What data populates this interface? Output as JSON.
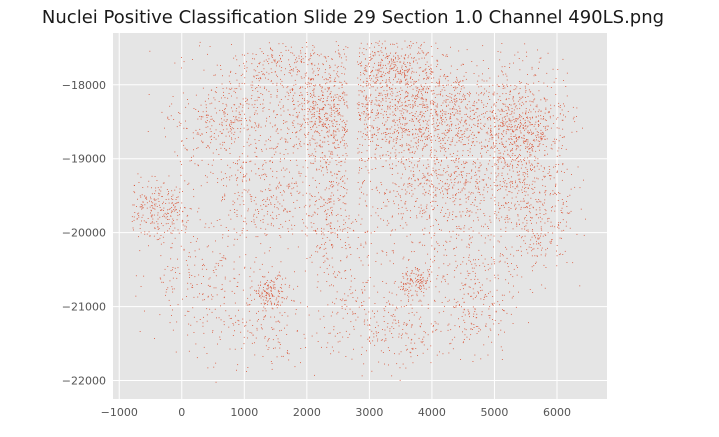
{
  "chart_data": {
    "type": "scatter",
    "title": "Nuclei Positive Classification Slide  29 Section 1.0 Channel 490LS.png",
    "xlabel": "",
    "ylabel": "",
    "xlim": [
      -1100,
      6800
    ],
    "ylim": [
      -22250,
      -17300
    ],
    "xticks": [
      -1000,
      0,
      1000,
      2000,
      3000,
      4000,
      5000,
      6000
    ],
    "yticks": [
      -18000,
      -19000,
      -20000,
      -21000,
      -22000
    ],
    "xtick_labels": [
      "−1000",
      "0",
      "1000",
      "2000",
      "3000",
      "4000",
      "5000",
      "6000"
    ],
    "ytick_labels": [
      "−18000",
      "−19000",
      "−20000",
      "−21000",
      "−22000"
    ],
    "grid": true,
    "background_color": "#e5e5e5",
    "marker_color": "#d9573a",
    "series": [
      {
        "name": "",
        "clusters": [
          {
            "cx": 3800,
            "cy": -18450,
            "sx": 900,
            "sy": 350,
            "n": 1300
          },
          {
            "cx": 5400,
            "cy": -18700,
            "sx": 350,
            "sy": 450,
            "n": 650
          },
          {
            "cx": 3300,
            "cy": -17800,
            "sx": 500,
            "sy": 250,
            "n": 450
          },
          {
            "cx": 1600,
            "cy": -17800,
            "sx": 450,
            "sy": 300,
            "n": 280
          },
          {
            "cx": 700,
            "cy": -18500,
            "sx": 450,
            "sy": 300,
            "n": 300
          },
          {
            "cx": 2200,
            "cy": -18400,
            "sx": 300,
            "sy": 350,
            "n": 320
          },
          {
            "cx": -350,
            "cy": -19650,
            "sx": 250,
            "sy": 200,
            "n": 250
          },
          {
            "cx": 4200,
            "cy": -19400,
            "sx": 600,
            "sy": 350,
            "n": 380
          },
          {
            "cx": 1300,
            "cy": -19500,
            "sx": 450,
            "sy": 350,
            "n": 260
          },
          {
            "cx": 2450,
            "cy": -19700,
            "sx": 250,
            "sy": 600,
            "n": 300
          },
          {
            "cx": 5700,
            "cy": -19800,
            "sx": 300,
            "sy": 350,
            "n": 220
          },
          {
            "cx": 1400,
            "cy": -20800,
            "sx": 120,
            "sy": 120,
            "n": 130
          },
          {
            "cx": 3750,
            "cy": -20650,
            "sx": 150,
            "sy": 90,
            "n": 130
          },
          {
            "cx": 4700,
            "cy": -21000,
            "sx": 300,
            "sy": 300,
            "n": 190
          },
          {
            "cx": 3500,
            "cy": -21350,
            "sx": 400,
            "sy": 250,
            "n": 160
          },
          {
            "cx": 1100,
            "cy": -21300,
            "sx": 500,
            "sy": 300,
            "n": 170
          },
          {
            "cx": 250,
            "cy": -20600,
            "sx": 450,
            "sy": 350,
            "n": 170
          },
          {
            "cx": 2800,
            "cy": -21100,
            "sx": 400,
            "sy": 350,
            "n": 110
          },
          {
            "cx": 4500,
            "cy": -20200,
            "sx": 700,
            "sy": 400,
            "n": 220
          },
          {
            "cx": 3000,
            "cy": -18900,
            "sx": 1900,
            "sy": 1000,
            "n": 700
          }
        ]
      }
    ]
  }
}
